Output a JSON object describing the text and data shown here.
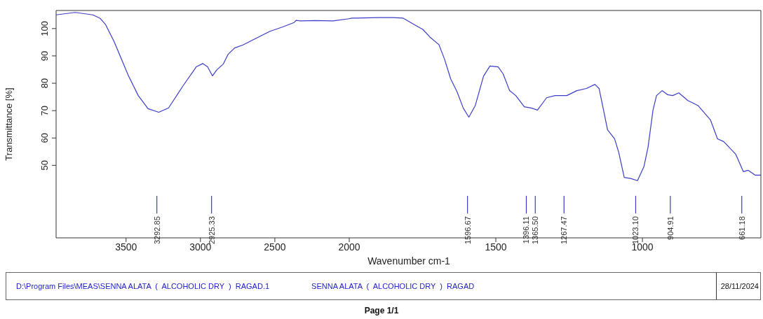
{
  "chart_data": [
    {
      "type": "line",
      "ylabel": "Transmittance [%]",
      "x": [
        3970,
        3842,
        3723,
        3676,
        3638,
        3580,
        3485,
        3418,
        3352,
        3280,
        3214,
        3114,
        3028,
        2985,
        2952,
        2919,
        2890,
        2847,
        2814,
        2771,
        2714,
        2638,
        2533,
        2447,
        2371,
        2357,
        2328,
        2228,
        2109,
        2000
      ],
      "series": [
        {
          "color": "#3c3cc8",
          "values": [
            105.0,
            105.9,
            105.0,
            103.8,
            101.5,
            95.2,
            82.9,
            75.5,
            70.7,
            69.4,
            71.0,
            79.3,
            86.0,
            87.2,
            86.0,
            82.7,
            84.9,
            87.0,
            90.6,
            92.9,
            94.0,
            96.1,
            99.0,
            100.6,
            102.2,
            103.0,
            102.8,
            102.9,
            102.8,
            103.6
          ]
        }
      ],
      "xlim": [
        3970,
        2000
      ],
      "xticks": [
        3500,
        3000,
        2500
      ],
      "ylim": [
        23.5,
        106.6
      ],
      "yticks": [
        50,
        60,
        70,
        80,
        90,
        100
      ],
      "marker": "none",
      "line_style": "solid",
      "ref_lines": [
        {
          "axis": "x",
          "value": 3292.85,
          "label": "3292.85",
          "color": "#3c3cc8"
        },
        {
          "axis": "x",
          "value": 2925.33,
          "label": "2925.33",
          "color": "#3c3cc8"
        }
      ],
      "annotations": [
        "D:\\Program Files\\MEAS\\SENNA ALATA  (  ALCOHOLIC DRY  )  RAGAD.1",
        "SENNA ALATA  (  ALCOHOLIC DRY  )  RAGAD",
        "28/11/2024",
        "Page 1/1"
      ]
    },
    {
      "type": "line",
      "xlabel": "Wavenumber cm-1",
      "tick_labels": "x",
      "x": [
        2000,
        1990,
        1900,
        1852,
        1816,
        1776,
        1749,
        1725,
        1694,
        1675,
        1654,
        1632,
        1611,
        1592,
        1570,
        1542,
        1520,
        1492,
        1475,
        1453,
        1432,
        1403,
        1377,
        1358,
        1327,
        1298,
        1258,
        1224,
        1191,
        1162,
        1148,
        1136,
        1119,
        1095,
        1081,
        1062,
        1040,
        1017,
        995,
        981,
        964,
        952,
        933,
        914,
        897,
        876,
        845,
        811,
        768,
        744,
        723,
        682,
        656,
        639,
        615,
        596
      ],
      "series": [
        {
          "color": "#3c3cc8",
          "values": [
            103.6,
            103.8,
            104.0,
            104.0,
            103.8,
            101.3,
            99.7,
            96.9,
            94.1,
            88.8,
            81.6,
            76.8,
            70.9,
            67.6,
            71.9,
            82.6,
            86.3,
            86.0,
            83.4,
            77.3,
            75.5,
            71.4,
            70.9,
            70.2,
            74.7,
            75.5,
            75.5,
            77.3,
            78.1,
            79.6,
            78.1,
            71.9,
            63.0,
            59.7,
            54.8,
            45.6,
            45.2,
            44.4,
            49.5,
            56.6,
            70.2,
            75.5,
            77.3,
            75.8,
            75.5,
            76.5,
            73.7,
            71.9,
            66.6,
            59.7,
            58.7,
            54.1,
            47.7,
            48.2,
            46.4,
            46.4
          ]
        }
      ],
      "xlim": [
        2000,
        596
      ],
      "xticks": [
        2000,
        1500,
        1000
      ],
      "ylim": [
        23.5,
        106.6
      ],
      "yticks": [
        50,
        60,
        70,
        80,
        90,
        100
      ],
      "marker": "none",
      "line_style": "solid",
      "ref_lines": [
        {
          "axis": "x",
          "value": 1596.67,
          "label": "1596.67",
          "color": "#3c3cc8"
        },
        {
          "axis": "x",
          "value": 1396.11,
          "label": "1396.11",
          "color": "#3c3cc8"
        },
        {
          "axis": "x",
          "value": 1365.5,
          "label": "1365.50",
          "color": "#3c3cc8"
        },
        {
          "axis": "x",
          "value": 1267.47,
          "label": "1267.47",
          "color": "#3c3cc8"
        },
        {
          "axis": "x",
          "value": 1023.1,
          "label": "1023.10",
          "color": "#3c3cc8"
        },
        {
          "axis": "x",
          "value": 904.91,
          "label": "904.91",
          "color": "#3c3cc8"
        },
        {
          "axis": "x",
          "value": 661.18,
          "label": "661.18",
          "color": "#3c3cc8"
        }
      ]
    }
  ]
}
